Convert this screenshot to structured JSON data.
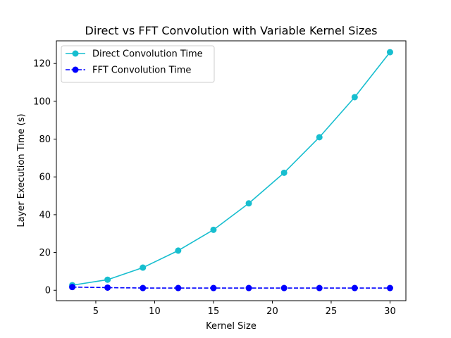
{
  "chart_data": {
    "type": "line",
    "title": "Direct vs FFT Convolution with Variable Kernel Sizes",
    "xlabel": "Kernel Size",
    "ylabel": "Layer Execution Time (s)",
    "x": [
      3,
      6,
      9,
      12,
      15,
      18,
      21,
      24,
      27,
      30
    ],
    "xlim": [
      1.65,
      31.35
    ],
    "ylim": [
      -5.5,
      132
    ],
    "xticks": [
      5,
      10,
      15,
      20,
      25,
      30
    ],
    "yticks": [
      0,
      20,
      40,
      60,
      80,
      100,
      120
    ],
    "grid": false,
    "legend_position": "upper-left",
    "series": [
      {
        "name": "Direct Convolution Time",
        "color": "#17becf",
        "line_style": "solid",
        "marker": "circle",
        "values": [
          2.7,
          5.6,
          12.0,
          21.0,
          32.0,
          46.0,
          62.2,
          81.0,
          102.2,
          126.0
        ]
      },
      {
        "name": "FFT Convolution Time",
        "color": "#0000ff",
        "line_style": "dashed",
        "marker": "circle",
        "values": [
          1.7,
          1.4,
          1.2,
          1.2,
          1.2,
          1.2,
          1.2,
          1.2,
          1.2,
          1.2
        ]
      }
    ]
  }
}
